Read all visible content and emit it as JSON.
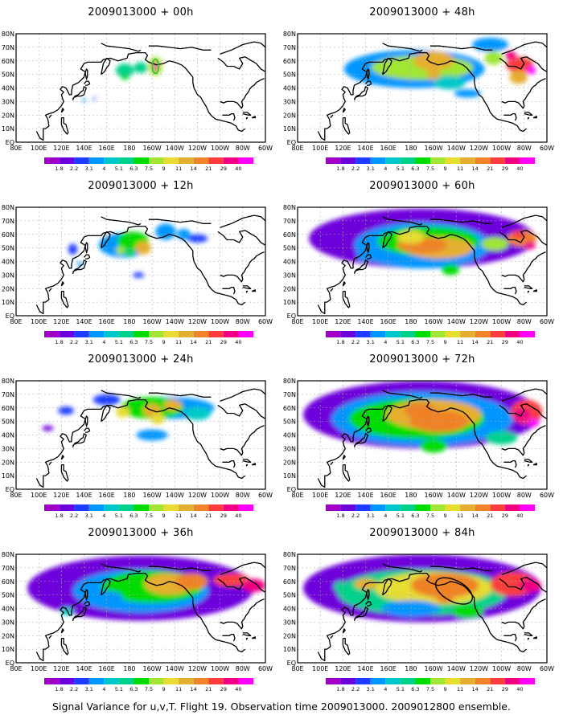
{
  "panels": [
    {
      "title": "2009013000 + 00h",
      "forecast_hour": 0
    },
    {
      "title": "2009013000 + 48h",
      "forecast_hour": 48
    },
    {
      "title": "2009013000 + 12h",
      "forecast_hour": 12
    },
    {
      "title": "2009013000 + 60h",
      "forecast_hour": 60
    },
    {
      "title": "2009013000 + 24h",
      "forecast_hour": 24
    },
    {
      "title": "2009013000 + 72h",
      "forecast_hour": 72
    },
    {
      "title": "2009013000 + 36h",
      "forecast_hour": 36
    },
    {
      "title": "2009013000 + 84h",
      "forecast_hour": 84
    }
  ],
  "lat_labels": [
    "80N",
    "70N",
    "60N",
    "50N",
    "40N",
    "30N",
    "20N",
    "10N",
    "EQ"
  ],
  "lon_labels": [
    "80E",
    "100E",
    "120E",
    "140E",
    "160E",
    "180",
    "160W",
    "140W",
    "120W",
    "100W",
    "80W",
    "60W"
  ],
  "colorbar": {
    "labels": [
      "1.8",
      "2.2",
      "3.1",
      "4",
      "5.1",
      "6.3",
      "7.5",
      "9",
      "11",
      "14",
      "21",
      "29",
      "40"
    ],
    "colors": [
      "#a000c8",
      "#6e00dc",
      "#1e3cff",
      "#0096ff",
      "#00c8c8",
      "#00d28c",
      "#00dc00",
      "#a0e632",
      "#e6dc32",
      "#e6af2d",
      "#f08228",
      "#fa3c3c",
      "#f00082",
      "#ff00ff"
    ]
  },
  "caption": "Signal Variance for u,v,T. Flight 19. Observation time 2009013000. 2009012800 ensemble."
}
